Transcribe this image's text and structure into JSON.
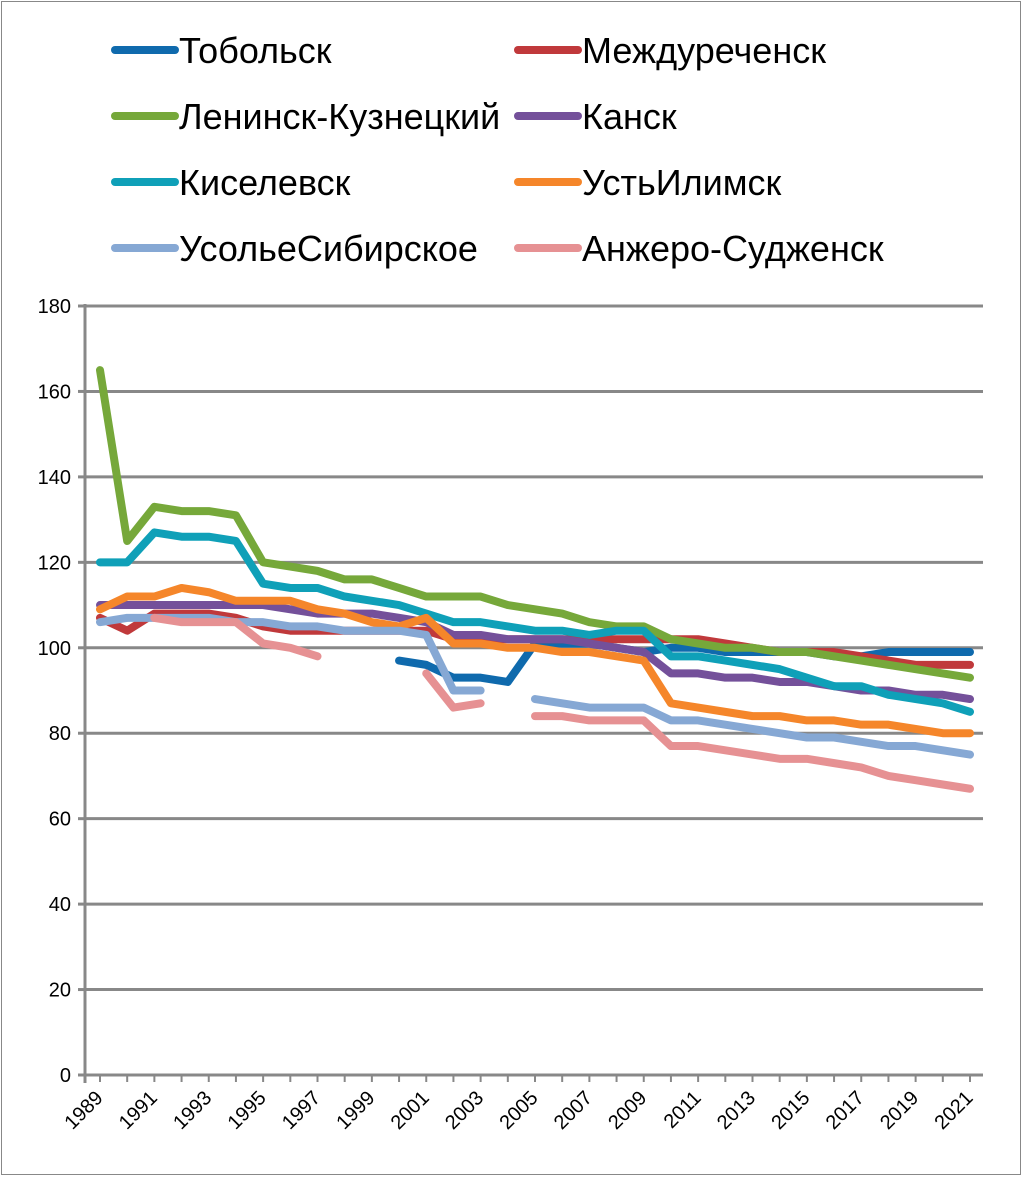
{
  "chart_data": {
    "type": "line",
    "title": "",
    "xlabel": "",
    "ylabel": "",
    "ylim": [
      0,
      180
    ],
    "yticks": [
      0,
      20,
      40,
      60,
      80,
      100,
      120,
      140,
      160,
      180
    ],
    "x": [
      1989,
      1990,
      1991,
      1992,
      1993,
      1994,
      1995,
      1996,
      1997,
      1998,
      1999,
      2000,
      2001,
      2002,
      2003,
      2004,
      2005,
      2006,
      2007,
      2008,
      2009,
      2010,
      2011,
      2012,
      2013,
      2014,
      2015,
      2016,
      2017,
      2018,
      2019,
      2020,
      2021
    ],
    "xtick_labels": [
      "1989",
      "1991",
      "1993",
      "1995",
      "1997",
      "1999",
      "2001",
      "2003",
      "2005",
      "2007",
      "2009",
      "2011",
      "2013",
      "2015",
      "2017",
      "2019",
      "2021"
    ],
    "grid": "horizontal",
    "legend_placement": "top",
    "series": [
      {
        "name": "Тобольск",
        "color": "#0f6aad",
        "values": [
          null,
          null,
          null,
          null,
          null,
          null,
          null,
          null,
          null,
          null,
          null,
          97,
          96,
          93,
          93,
          92,
          101,
          101,
          101,
          100,
          99,
          100,
          100,
          99,
          99,
          99,
          99,
          98,
          98,
          99,
          99,
          99,
          99
        ]
      },
      {
        "name": "Междуреченск",
        "color": "#c0393b",
        "values": [
          107,
          104,
          108,
          108,
          108,
          107,
          105,
          104,
          104,
          104,
          104,
          104,
          104,
          102,
          102,
          102,
          102,
          102,
          102,
          102,
          102,
          102,
          102,
          101,
          100,
          99,
          99,
          99,
          98,
          97,
          96,
          96,
          96
        ]
      },
      {
        "name": "Ленинск-Кузнецкий",
        "color": "#76a83a",
        "values": [
          165,
          125,
          133,
          132,
          132,
          131,
          120,
          119,
          118,
          116,
          116,
          114,
          112,
          112,
          112,
          110,
          109,
          108,
          106,
          105,
          105,
          102,
          101,
          100,
          100,
          99,
          99,
          98,
          97,
          96,
          95,
          94,
          93
        ]
      },
      {
        "name": "Канск",
        "color": "#74509a",
        "values": [
          110,
          110,
          110,
          110,
          110,
          110,
          110,
          109,
          108,
          108,
          108,
          107,
          106,
          103,
          103,
          102,
          102,
          102,
          101,
          100,
          99,
          94,
          94,
          93,
          93,
          92,
          92,
          91,
          90,
          90,
          89,
          89,
          88
        ]
      },
      {
        "name": "Киселевск",
        "color": "#0fa0b8",
        "values": [
          120,
          120,
          127,
          126,
          126,
          125,
          115,
          114,
          114,
          112,
          111,
          110,
          108,
          106,
          106,
          105,
          104,
          104,
          103,
          104,
          104,
          98,
          98,
          97,
          96,
          95,
          93,
          91,
          91,
          89,
          88,
          87,
          85
        ]
      },
      {
        "name": "УстьИлимск",
        "color": "#f5862a",
        "values": [
          109,
          112,
          112,
          114,
          113,
          111,
          111,
          111,
          109,
          108,
          106,
          105,
          107,
          101,
          101,
          100,
          100,
          99,
          99,
          98,
          97,
          87,
          86,
          85,
          84,
          84,
          83,
          83,
          82,
          82,
          81,
          80,
          80
        ]
      },
      {
        "name": "УсольеСибирское",
        "color": "#86a8d4",
        "values": [
          106,
          107,
          107,
          107,
          107,
          106,
          106,
          105,
          105,
          104,
          104,
          104,
          103,
          90,
          90,
          null,
          88,
          87,
          86,
          86,
          86,
          83,
          83,
          82,
          81,
          80,
          79,
          79,
          78,
          77,
          77,
          76,
          75
        ]
      },
      {
        "name": "Анжеро-Судженск",
        "color": "#e69193",
        "values": [
          null,
          null,
          107,
          106,
          106,
          106,
          101,
          100,
          98,
          null,
          null,
          null,
          94,
          86,
          87,
          null,
          84,
          84,
          83,
          83,
          83,
          77,
          77,
          76,
          75,
          74,
          74,
          73,
          72,
          70,
          69,
          68,
          67
        ]
      }
    ]
  }
}
